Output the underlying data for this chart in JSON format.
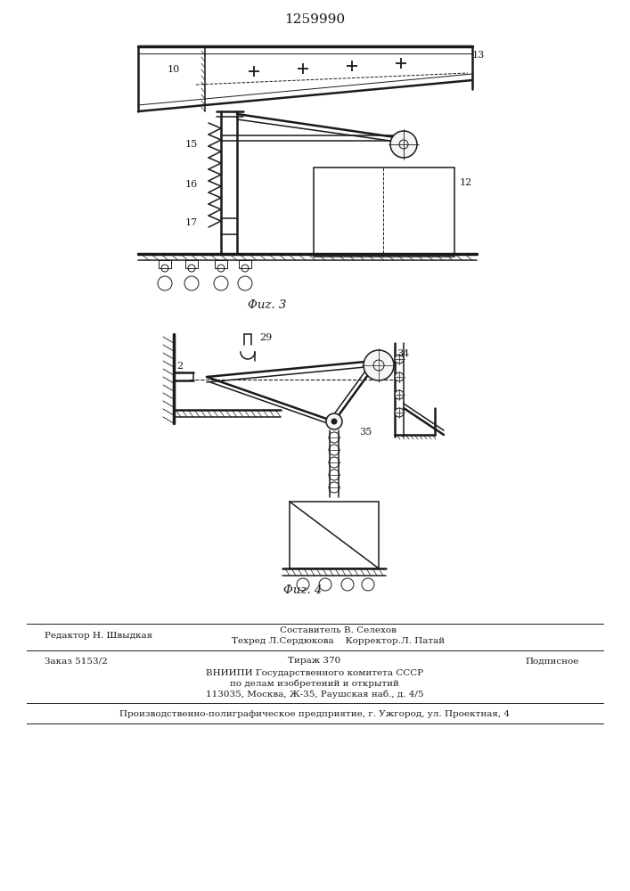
{
  "patent_number": "1259990",
  "fig3_caption": "Φuz. 3",
  "fig4_caption": "Φuz. 4",
  "editor_line": "Редактор Н. Швыдкая",
  "composer_line1": "Составитель В. Селехов",
  "composer_line2": "Техред Л.Сердюкова    Корректор.Л. Патай",
  "order_line": "Заказ 5153/2",
  "print_line": "Тираж 370",
  "sign_line": "Подписное",
  "org_line1": "ВНИИПИ Государственного комитета СССР",
  "org_line2": "по делам изобретений и открытий",
  "org_line3": "113035, Москва, Ж-35, Раушская наб., д. 4/5",
  "printer_line": "Производственно-полиграфическое предприятие, г. Ужгород, ул. Проектная, 4",
  "bg_color": "#ffffff",
  "line_color": "#1a1a1a"
}
